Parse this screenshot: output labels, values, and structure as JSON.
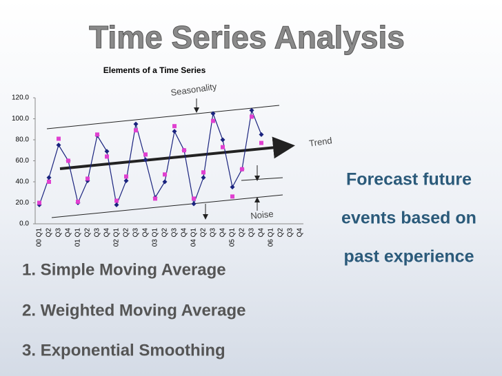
{
  "title": "Time Series Analysis",
  "chart_data": {
    "type": "line",
    "title": "Elements of a Time Series",
    "categories": [
      "00 Q1",
      "Q2",
      "Q3",
      "Q4",
      "01 Q1",
      "Q2",
      "Q3",
      "Q4",
      "02 Q1",
      "Q2",
      "Q3",
      "Q4",
      "03 Q1",
      "Q2",
      "Q3",
      "Q4",
      "04 Q1",
      "Q2",
      "Q3",
      "Q4",
      "05 Q1",
      "Q2",
      "Q3",
      "Q4",
      "06 Q1",
      "Q2",
      "Q3",
      "Q4"
    ],
    "series": [
      {
        "color": "#1a237e",
        "marker": "diamond",
        "line": true,
        "values": [
          18,
          44,
          75,
          60,
          20,
          41,
          84,
          69,
          18,
          41,
          95,
          61,
          25,
          40,
          88,
          70,
          19,
          44,
          105,
          80,
          35,
          52,
          108,
          85,
          null,
          null,
          null,
          null
        ]
      },
      {
        "color": "#e040d0",
        "marker": "square",
        "line": false,
        "values": [
          20,
          40,
          81,
          60,
          21,
          43,
          85,
          64,
          22,
          45,
          89,
          66,
          24,
          47,
          93,
          70,
          24,
          49,
          98,
          73,
          26,
          52,
          102,
          77,
          null,
          null,
          null,
          null
        ]
      }
    ],
    "ylim": [
      0,
      120
    ],
    "yticks": [
      {
        "value": 0,
        "label": "0.0"
      },
      {
        "value": 20,
        "label": "20.0"
      },
      {
        "value": 40,
        "label": "40.0"
      },
      {
        "value": 60,
        "label": "60.0"
      },
      {
        "value": 80,
        "label": "80.0"
      },
      {
        "value": 100,
        "label": "100.0"
      },
      {
        "value": 120,
        "label": "120.0"
      }
    ],
    "annotations": [
      "Seasonality",
      "Trend",
      "Noise"
    ]
  },
  "callout": [
    "Forecast future",
    "events based on",
    "past experience"
  ],
  "list": [
    "1. Simple Moving Average",
    "2. Weighted Moving Average",
    "3. Exponential Smoothing"
  ]
}
